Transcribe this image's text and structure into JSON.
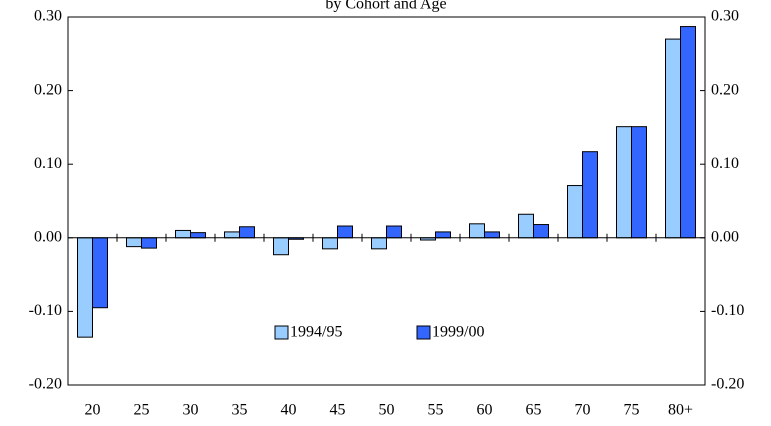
{
  "chart_data": {
    "type": "bar",
    "title": "by Cohort and Age",
    "categories": [
      "20",
      "25",
      "30",
      "35",
      "40",
      "45",
      "50",
      "55",
      "60",
      "65",
      "70",
      "75",
      "80+"
    ],
    "series": [
      {
        "name": "1994/95",
        "color": "#99ccff",
        "values": [
          -0.135,
          -0.012,
          0.01,
          0.008,
          -0.023,
          -0.015,
          -0.015,
          -0.003,
          0.019,
          0.032,
          0.071,
          0.151,
          0.27
        ]
      },
      {
        "name": "1999/00",
        "color": "#3366ff",
        "values": [
          -0.095,
          -0.014,
          0.007,
          0.015,
          -0.002,
          0.016,
          0.016,
          0.008,
          0.008,
          0.018,
          0.117,
          0.151,
          0.287
        ]
      }
    ],
    "ylim": [
      -0.2,
      0.3
    ],
    "yticks": [
      {
        "value": -0.2,
        "label": "-0.20"
      },
      {
        "value": -0.1,
        "label": "-0.10"
      },
      {
        "value": 0,
        "label": "0.00"
      },
      {
        "value": 0.1,
        "label": "0.10"
      },
      {
        "value": 0.2,
        "label": "0.20"
      },
      {
        "value": 0.3,
        "label": "0.30"
      }
    ],
    "y2lim": [
      -0.2,
      0.3
    ],
    "y2ticks": [
      {
        "value": -0.2,
        "label": "-0.20"
      },
      {
        "value": -0.1,
        "label": "-0.10"
      },
      {
        "value": 0,
        "label": "0.00"
      },
      {
        "value": 0.1,
        "label": "0.10"
      },
      {
        "value": 0.2,
        "label": "0.20"
      },
      {
        "value": 0.3,
        "label": "0.30"
      }
    ],
    "grid": false,
    "legend": "bottom"
  }
}
